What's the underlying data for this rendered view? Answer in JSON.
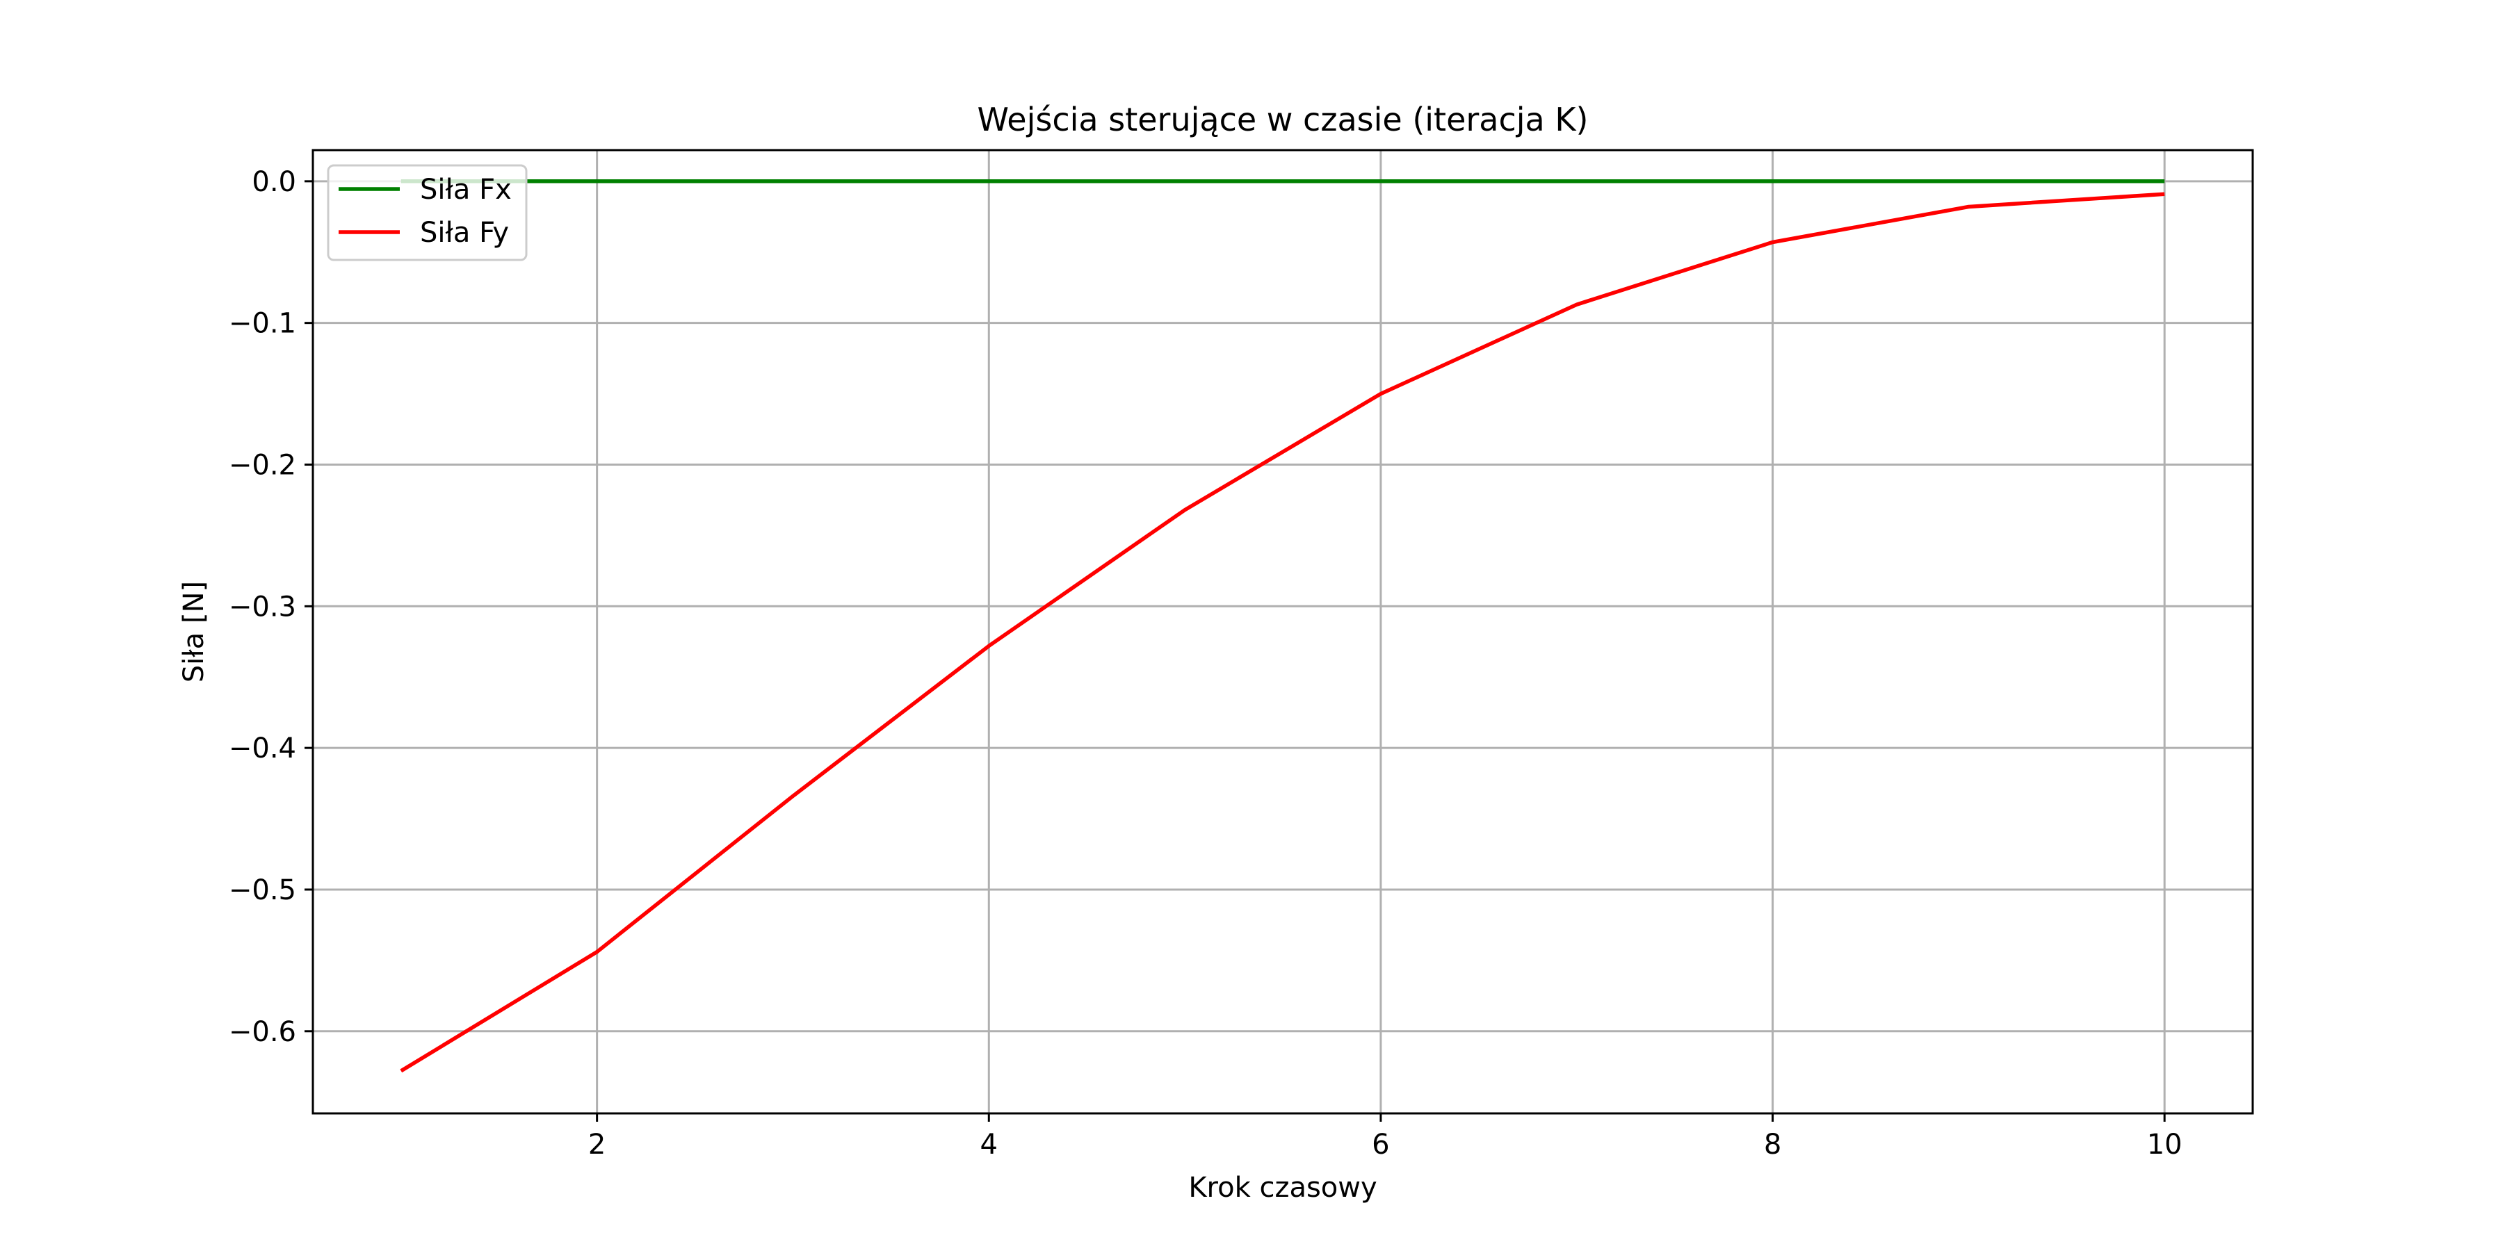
{
  "chart_data": {
    "type": "line",
    "title": "Wejścia sterujące w czasie (iteracja K)",
    "xlabel": "Krok czasowy",
    "ylabel": "Siła [N]",
    "xlim": [
      0.55,
      10.45
    ],
    "ylim": [
      -0.658,
      0.022
    ],
    "x_ticks": [
      2,
      4,
      6,
      8,
      10
    ],
    "x_tick_labels": [
      "2",
      "4",
      "6",
      "8",
      "10"
    ],
    "y_ticks": [
      0.0,
      -0.1,
      -0.2,
      -0.3,
      -0.4,
      -0.5,
      -0.6
    ],
    "y_tick_labels": [
      "0.0",
      "−0.1",
      "−0.2",
      "−0.3",
      "−0.4",
      "−0.5",
      "−0.6"
    ],
    "grid": true,
    "legend_position": "upper-left",
    "x": [
      1,
      2,
      3,
      4,
      5,
      6,
      7,
      8,
      9,
      10
    ],
    "series": [
      {
        "name": "Siła Fx",
        "color": "#008000",
        "values": [
          0,
          0,
          0,
          0,
          0,
          0,
          0,
          0,
          0,
          0
        ]
      },
      {
        "name": "Siła Fy",
        "color": "#ff0000",
        "values": [
          -0.628,
          -0.544,
          -0.434,
          -0.328,
          -0.232,
          -0.15,
          -0.087,
          -0.043,
          -0.018,
          -0.009
        ]
      }
    ]
  }
}
